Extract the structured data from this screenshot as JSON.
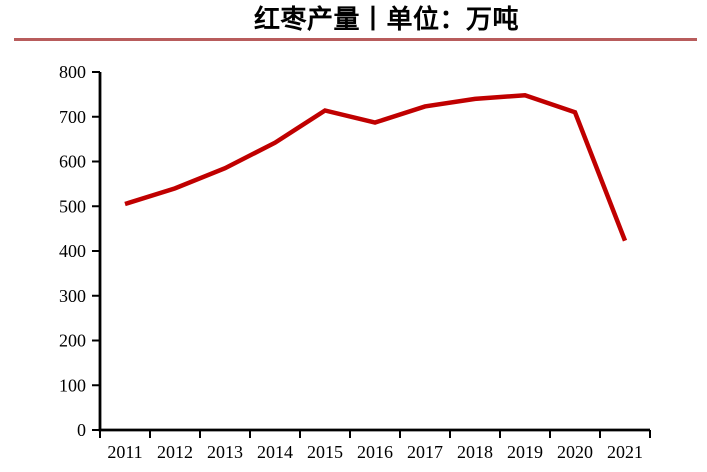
{
  "chart_data": {
    "type": "line",
    "title": "红枣产量丨单位：万吨",
    "series_name": "红枣产量",
    "unit": "万吨",
    "categories": [
      "2011",
      "2012",
      "2013",
      "2014",
      "2015",
      "2016",
      "2017",
      "2018",
      "2019",
      "2020",
      "2021"
    ],
    "values": [
      505,
      540,
      585,
      642,
      714,
      687,
      723,
      740,
      748,
      710,
      423
    ],
    "xlabel": "",
    "ylabel": "",
    "ylim": [
      0,
      800
    ],
    "ytick_step": 100,
    "grid": false,
    "legend": false,
    "colors": {
      "line": "#c00000",
      "axis": "#000000",
      "tick_label": "#000000",
      "title_rule": "#b85c5c",
      "background": "#ffffff"
    }
  }
}
